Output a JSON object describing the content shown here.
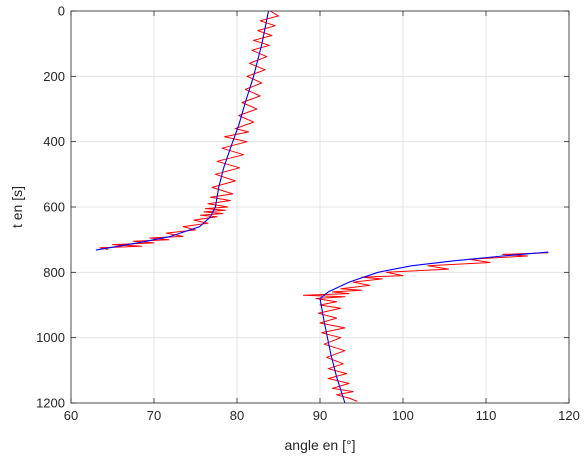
{
  "chart_data": {
    "type": "line",
    "title": "",
    "xlabel": "angle en [°]",
    "ylabel": "t en [s]",
    "xlim": [
      60,
      120
    ],
    "ylim": [
      0,
      1200
    ],
    "y_reversed": true,
    "grid": true,
    "legend": "none",
    "xticks": [
      "60",
      "70",
      "80",
      "90",
      "100",
      "110",
      "120"
    ],
    "yticks": [
      "0",
      "200",
      "400",
      "600",
      "800",
      "1000",
      "1200"
    ],
    "series": [
      {
        "color": "#ff0000",
        "style": "noisy measurement",
        "segments": [
          {
            "x": [
              84.0,
              85.0,
              82.8,
              84.6,
              82.5,
              84.2,
              82.0,
              83.9,
              81.8,
              83.6,
              81.5,
              83.4,
              81.2,
              83.0,
              81.0,
              82.8,
              80.6,
              82.4,
              80.2,
              82.0,
              79.8,
              81.4,
              78.5,
              81.2,
              78.2,
              80.8,
              77.6,
              80.3,
              77.4,
              79.8,
              77.0,
              79.5,
              76.8,
              79.2,
              76.5,
              78.9,
              76.2,
              78.6,
              76.0,
              78.3,
              75.6,
              77.6,
              74.8,
              76.5,
              73.5,
              75.0,
              71.5,
              73.5,
              69.5,
              71.8,
              67.5,
              70.0,
              65.0,
              68.5,
              63.5,
              64.5
            ],
            "y": [
              0,
              15,
              30,
              45,
              60,
              75,
              90,
              105,
              120,
              140,
              160,
              180,
              200,
              220,
              240,
              260,
              280,
              300,
              320,
              340,
              360,
              370,
              385,
              400,
              420,
              440,
              460,
              480,
              500,
              520,
              540,
              560,
              570,
              580,
              590,
              600,
              605,
              610,
              615,
              620,
              625,
              630,
              640,
              650,
              660,
              670,
              680,
              690,
              695,
              700,
              705,
              710,
              715,
              720,
              725,
              730
            ]
          },
          {
            "x": [
              117.5,
              112.0,
              115.0,
              108.0,
              110.5,
              103.0,
              105.5,
              98.0,
              100.0,
              95.0,
              97.5,
              94.0,
              96.0,
              92.5,
              95.0,
              91.5,
              93.5,
              88.0,
              93.0,
              89.5,
              92.0,
              90.0,
              92.5,
              89.8,
              92.0,
              90.0,
              93.0,
              90.2,
              92.5,
              90.5,
              93.0,
              90.8,
              92.8,
              91.0,
              93.2,
              91.0,
              93.5,
              91.5,
              94.0,
              92.0,
              93.5,
              94.5
            ],
            "y": [
              740,
              745,
              750,
              760,
              770,
              780,
              790,
              800,
              810,
              815,
              820,
              830,
              840,
              850,
              855,
              860,
              865,
              870,
              875,
              880,
              890,
              900,
              910,
              925,
              940,
              955,
              970,
              985,
              1000,
              1020,
              1040,
              1060,
              1080,
              1095,
              1110,
              1125,
              1140,
              1155,
              1165,
              1175,
              1185,
              1195
            ]
          }
        ]
      },
      {
        "color": "#0000ff",
        "style": "smoothed fit",
        "segments": [
          {
            "x": [
              83.8,
              83.0,
              82.0,
              81.0,
              80.2,
              79.2,
              78.4,
              77.8,
              77.4,
              76.8,
              75.5,
              72.0,
              68.0,
              63.0
            ],
            "y": [
              0,
              100,
              200,
              280,
              350,
              420,
              480,
              540,
              600,
              630,
              660,
              690,
              710,
              732
            ]
          },
          {
            "x": [
              117.5,
              112.0,
              106.0,
              101.0,
              97.0,
              93.5,
              91.0,
              90.0,
              90.5,
              91.3,
              92.0,
              93.0
            ],
            "y": [
              738,
              750,
              765,
              780,
              800,
              830,
              860,
              880,
              950,
              1050,
              1120,
              1200
            ]
          }
        ]
      }
    ]
  }
}
